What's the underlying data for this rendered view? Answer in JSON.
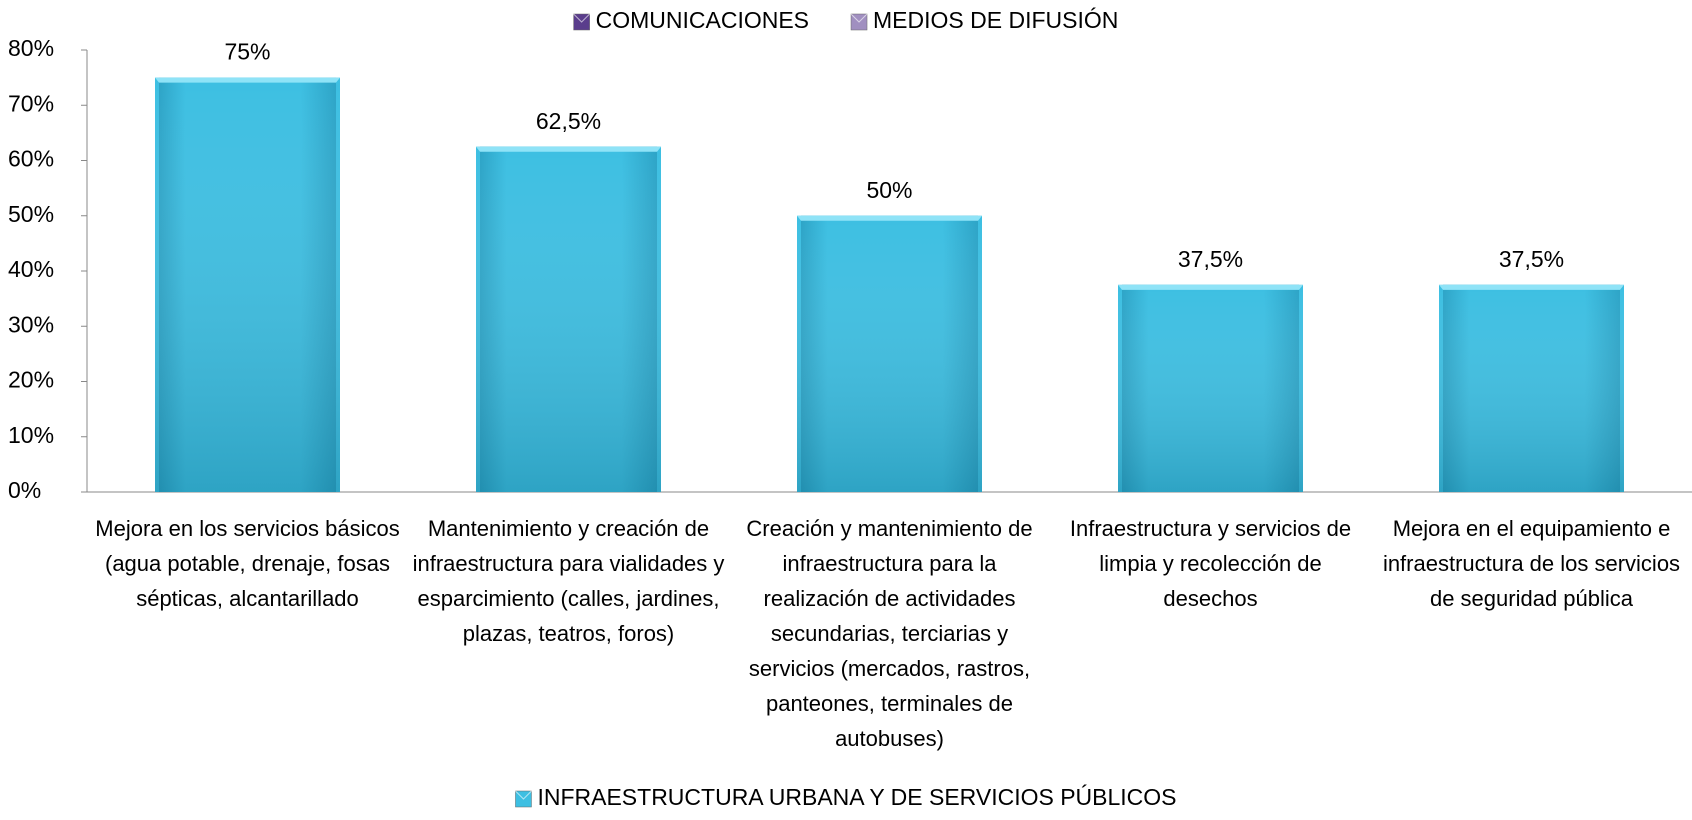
{
  "chart_data": {
    "type": "bar",
    "categories": [
      "Mejora en los servicios básicos (agua potable, drenaje, fosas sépticas, alcantarillado",
      "Mantenimiento y creación de infraestructura para vialidades y esparcimiento (calles, jardines, plazas, teatros, foros)",
      "Creación y mantenimiento de infraestructura para la realización de actividades secundarias, terciarias y servicios (mercados, rastros, panteones, terminales de autobuses)",
      "Infraestructura y servicios de limpia y recolección de desechos",
      "Mejora en el equipamiento e infraestructura de los servicios de seguridad pública"
    ],
    "series": [
      {
        "name": "COMUNICACIONES",
        "color": "#5a3d8c",
        "values": [
          null,
          null,
          null,
          null,
          null
        ]
      },
      {
        "name": "MEDIOS DE DIFUSIÓN",
        "color": "#a08fc0",
        "values": [
          null,
          null,
          null,
          null,
          null
        ]
      },
      {
        "name": "INFRAESTRUCTURA URBANA Y DE SERVICIOS PÚBLICOS",
        "color": "#3dbfe2",
        "values": [
          75,
          62.5,
          50,
          37.5,
          37.5
        ],
        "value_labels": [
          "75%",
          "62,5%",
          "50%",
          "37,5%",
          "37,5%"
        ]
      }
    ],
    "ylim": [
      0,
      80
    ],
    "yticks": [
      {
        "value": 0,
        "label": "0%"
      },
      {
        "value": 10,
        "label": "10%"
      },
      {
        "value": 20,
        "label": "20%"
      },
      {
        "value": 30,
        "label": "30%"
      },
      {
        "value": 40,
        "label": "40%"
      },
      {
        "value": 50,
        "label": "50%"
      },
      {
        "value": 60,
        "label": "60%"
      },
      {
        "value": 70,
        "label": "70%"
      },
      {
        "value": 80,
        "label": "80%"
      }
    ],
    "grid": false
  }
}
